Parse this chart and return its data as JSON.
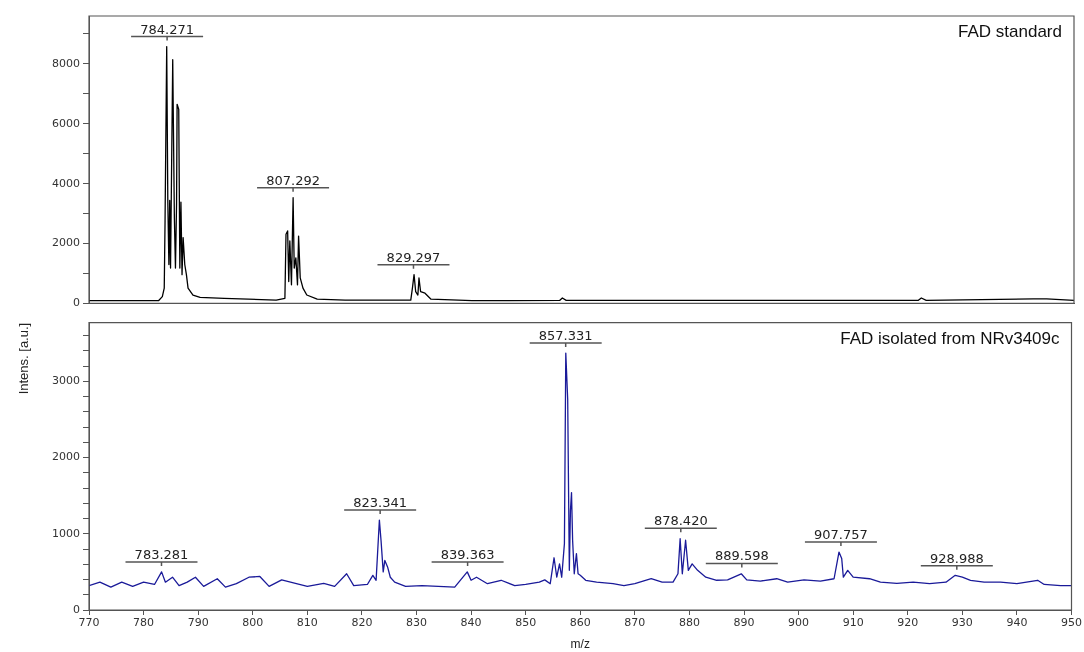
{
  "chart_data": [
    {
      "type": "line",
      "title": "FAD standard",
      "xlim": [
        770,
        950
      ],
      "ylim": [
        0,
        9600
      ],
      "tick_labels": "y",
      "yticks": [
        {
          "value": 0,
          "label": "0"
        },
        {
          "value": 1000,
          "label": null
        },
        2000,
        {
          "value": 3000,
          "label": null
        },
        4000,
        {
          "value": 5000,
          "label": null
        },
        6000,
        {
          "value": 7000,
          "label": null
        },
        8000,
        {
          "value": 9000,
          "label": null
        }
      ],
      "annotations": [
        {
          "text": "784.271",
          "x": 784.271,
          "y": 8580
        },
        {
          "text": "807.292",
          "x": 807.292,
          "y": 3530
        },
        {
          "text": "829.297",
          "x": 829.297,
          "y": 960
        }
      ],
      "series": [
        {
          "color": "#000000",
          "x": [
            770,
            782.7,
            783.4,
            783.75,
            783.9,
            784.2,
            784.4,
            784.6,
            784.75,
            784.9,
            785.3,
            785.6,
            785.8,
            786.0,
            786.1,
            786.4,
            786.6,
            786.8,
            787.0,
            787.2,
            787.5,
            787.8,
            788.1,
            789.0,
            790.3,
            794.7,
            799.1,
            804.2,
            805.8,
            806.0,
            806.3,
            806.5,
            806.7,
            807.0,
            807.3,
            807.5,
            807.8,
            808.1,
            808.3,
            808.6,
            809.1,
            809.8,
            811.7,
            816.8,
            828.8,
            829.1,
            829.4,
            829.7,
            830.1,
            830.3,
            830.6,
            831.4,
            832.5,
            840,
            856.0,
            856.5,
            857.2,
            880,
            921.5,
            922.1,
            923,
            942.6,
            945,
            950
          ],
          "values": [
            90,
            90,
            225,
            507,
            2760,
            8580,
            3440,
            1300,
            3440,
            1180,
            8140,
            2870,
            1180,
            3330,
            6650,
            6480,
            1180,
            3380,
            960,
            2200,
            1300,
            960,
            510,
            280,
            200,
            170,
            140,
            110,
            170,
            2310,
            2420,
            730,
            2090,
            620,
            3530,
            1180,
            1520,
            620,
            2250,
            850,
            510,
            280,
            140,
            110,
            110,
            510,
            960,
            390,
            280,
            850,
            390,
            340,
            140,
            90,
            100,
            180,
            100,
            100,
            100,
            180,
            100,
            150,
            150,
            100
          ]
        }
      ]
    },
    {
      "type": "line",
      "title": "FAD isolated from NRv3409c",
      "xlabel": "m/z",
      "ylabel": "Intens. [a.u.]",
      "xlim": [
        770,
        950
      ],
      "ylim": [
        0,
        3770
      ],
      "xticks": [
        770,
        780,
        790,
        800,
        810,
        820,
        830,
        840,
        850,
        860,
        870,
        880,
        890,
        900,
        910,
        920,
        930,
        940,
        950
      ],
      "yticks": [
        {
          "value": 0,
          "label": "0"
        },
        {
          "value": 200,
          "label": null
        },
        {
          "value": 400,
          "label": null
        },
        {
          "value": 600,
          "label": null
        },
        {
          "value": 800,
          "label": null
        },
        1000,
        {
          "value": 1200,
          "label": null
        },
        {
          "value": 1400,
          "label": null
        },
        {
          "value": 1600,
          "label": null
        },
        {
          "value": 1800,
          "label": null
        },
        2000,
        {
          "value": 2200,
          "label": null
        },
        {
          "value": 2400,
          "label": null
        },
        {
          "value": 2600,
          "label": null
        },
        {
          "value": 2800,
          "label": null
        },
        3000,
        {
          "value": 3200,
          "label": null
        },
        {
          "value": 3400,
          "label": null
        },
        {
          "value": 3600,
          "label": null
        }
      ],
      "annotations": [
        {
          "text": "783.281",
          "x": 783.281,
          "y": 500
        },
        {
          "text": "823.341",
          "x": 823.341,
          "y": 1180
        },
        {
          "text": "839.363",
          "x": 839.363,
          "y": 500
        },
        {
          "text": "857.331",
          "x": 857.331,
          "y": 3370
        },
        {
          "text": "878.420",
          "x": 878.42,
          "y": 940
        },
        {
          "text": "889.598",
          "x": 889.598,
          "y": 480
        },
        {
          "text": "907.757",
          "x": 907.757,
          "y": 760
        },
        {
          "text": "928.988",
          "x": 928.988,
          "y": 450
        }
      ],
      "series": [
        {
          "color": "#1a1a99",
          "x": [
            770,
            772,
            774,
            776,
            778,
            780,
            782,
            783.3,
            784,
            785.3,
            786.5,
            788,
            789.5,
            791,
            793.5,
            795,
            797,
            799.3,
            801.3,
            803,
            805.3,
            808,
            810,
            813,
            815,
            817.2,
            818.5,
            821,
            822,
            822.6,
            823.2,
            823.5,
            823.9,
            824.2,
            824.7,
            825.2,
            826,
            828,
            831,
            834,
            837,
            839.3,
            840,
            841,
            843,
            845.5,
            848,
            850,
            852.5,
            853.5,
            854.5,
            855.2,
            855.7,
            856.2,
            856.6,
            857.1,
            857.35,
            857.7,
            858.0,
            858.2,
            858.4,
            858.6,
            858.9,
            859.3,
            859.6,
            860,
            861,
            863,
            866,
            868,
            870,
            873,
            875,
            877,
            877.9,
            878.3,
            878.7,
            879.3,
            879.8,
            880.5,
            881.5,
            883,
            885,
            887,
            889.5,
            890.5,
            893,
            896,
            898,
            901,
            904,
            906.5,
            907.4,
            907.9,
            908.2,
            909,
            910,
            913,
            915,
            918,
            921,
            924,
            927,
            928.7,
            930,
            931.5,
            934,
            937,
            940,
            943.8,
            945,
            948,
            950
          ],
          "values": [
            320,
            365,
            300,
            365,
            310,
            365,
            335,
            500,
            365,
            430,
            320,
            365,
            430,
            310,
            410,
            300,
            345,
            430,
            440,
            310,
            395,
            345,
            310,
            350,
            310,
            475,
            320,
            335,
            455,
            390,
            1180,
            915,
            500,
            650,
            565,
            430,
            365,
            310,
            320,
            310,
            300,
            500,
            390,
            430,
            345,
            390,
            320,
            335,
            365,
            395,
            345,
            685,
            430,
            605,
            430,
            870,
            3370,
            2760,
            520,
            1300,
            1540,
            915,
            475,
            740,
            475,
            455,
            390,
            365,
            345,
            320,
            345,
            410,
            365,
            365,
            475,
            935,
            475,
            915,
            520,
            605,
            520,
            430,
            390,
            395,
            475,
            395,
            380,
            410,
            365,
            395,
            380,
            410,
            760,
            675,
            430,
            520,
            430,
            410,
            365,
            350,
            365,
            345,
            365,
            455,
            430,
            390,
            365,
            365,
            345,
            390,
            335,
            320,
            320
          ]
        }
      ]
    }
  ]
}
